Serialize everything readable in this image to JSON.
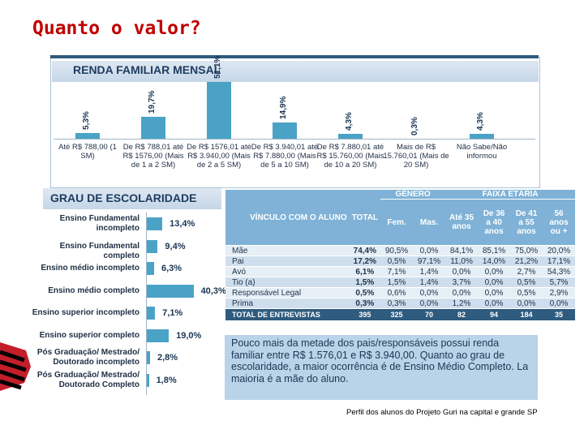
{
  "slide": {
    "title": "Quanto o valor?",
    "caption": "Perfil dos alunos do Projeto Guri na capital e grande SP",
    "note": "Pouco mais da metade dos pais/responsáveis possui renda familiar entre R$ 1.576,01 e R$ 3.940,00. Quanto ao grau de escolaridade, a maior ocorrência é de Ensino Médio Completo. La maioria é a mãe do aluno."
  },
  "chart_data": [
    {
      "type": "bar",
      "title": "RENDA FAMILIAR MENSAL",
      "categories": [
        "Até R$ 788,00 (1 SM)",
        "De R$ 788,01 até R$ 1576,00 (Mais de 1 a 2 SM)",
        "De R$ 1576,01 até R$ 3.940,00 (Mais de 2 a 5 SM)",
        "De R$ 3.940,01 até R$ 7.880,00 (Mais de 5 a 10 SM)",
        "De R$ 7.880,01 até R$ 15.760,00 (Mais de 10 a 20 SM)",
        "Mais de R$ 15.760,01 (Mais de 20 SM)",
        "Não Sabe/Não informou"
      ],
      "values": [
        5.3,
        19.7,
        51.1,
        14.9,
        4.3,
        0.3,
        4.3
      ],
      "labels": [
        "5,3%",
        "19,7%",
        "51,1%",
        "14,9%",
        "4,3%",
        "0,3%",
        "4,3%"
      ],
      "xlabel": "",
      "ylabel": "",
      "ylim": [
        0,
        55
      ]
    },
    {
      "type": "bar",
      "orientation": "horizontal",
      "title": "GRAU DE ESCOLARIDADE",
      "categories": [
        "Ensino Fundamental incompleto",
        "Ensino Fundamental completo",
        "Ensino médio incompleto",
        "Ensino médio completo",
        "Ensino superior incompleto",
        "Ensino superior completo",
        "Pós Graduação/ Mestrado/ Doutorado incompleto",
        "Pós Graduação/ Mestrado/ Doutorado Completo"
      ],
      "values": [
        13.4,
        9.4,
        6.3,
        40.3,
        7.1,
        19.0,
        2.8,
        1.8
      ],
      "labels": [
        "13,4%",
        "9,4%",
        "6,3%",
        "40,3%",
        "7,1%",
        "19,0%",
        "2,8%",
        "1,8%"
      ],
      "xlim": [
        0,
        42
      ]
    },
    {
      "type": "table",
      "group_headers": {
        "genero": "GÊNERO",
        "faixa": "FAIXA ETÁRIA"
      },
      "columns": [
        "VÍNCULO COM O ALUNO",
        "TOTAL",
        "Fem.",
        "Mas.",
        "Até 35 anos",
        "De 36 a 40 anos",
        "De 41 a 55 anos",
        "56 anos ou +"
      ],
      "rows": [
        [
          "Mãe",
          "74,4%",
          "90,5%",
          "0,0%",
          "84,1%",
          "85,1%",
          "75,0%",
          "20,0%"
        ],
        [
          "Pai",
          "17,2%",
          "0,5%",
          "97,1%",
          "11,0%",
          "14,0%",
          "21,2%",
          "17,1%"
        ],
        [
          "Avó",
          "6,1%",
          "7,1%",
          "1,4%",
          "0,0%",
          "0,0%",
          "2,7%",
          "54,3%"
        ],
        [
          "Tio (a)",
          "1,5%",
          "1,5%",
          "1,4%",
          "3,7%",
          "0,0%",
          "0,5%",
          "5,7%"
        ],
        [
          "Responsável Legal",
          "0,5%",
          "0,6%",
          "0,0%",
          "0,0%",
          "0,0%",
          "0,5%",
          "2,9%"
        ],
        [
          "Prima",
          "0,3%",
          "0,3%",
          "0,0%",
          "1,2%",
          "0,0%",
          "0,0%",
          "0,0%"
        ]
      ],
      "footer": [
        "TOTAL DE ENTREVISTAS",
        "395",
        "325",
        "70",
        "82",
        "94",
        "184",
        "35"
      ]
    }
  ],
  "colors": {
    "bar": "#4aa3c7",
    "title": "#c00000",
    "header_blue": "#7fb2d6",
    "dark_blue": "#2f5b7e"
  }
}
